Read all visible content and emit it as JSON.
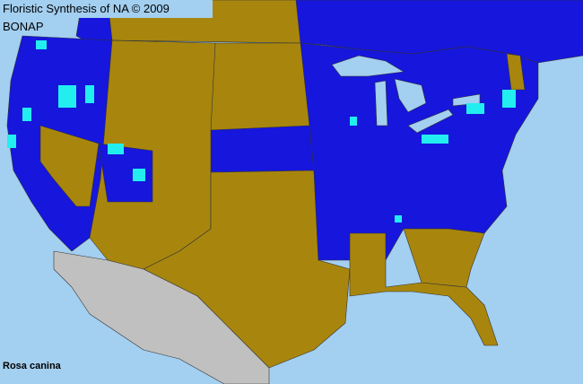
{
  "header": {
    "title": "Floristic Synthesis of NA © 2009 BONAP"
  },
  "map": {
    "species": "Rosa canina",
    "colors": {
      "ocean": "#a3cff0",
      "present_blue": "#1616dc",
      "present_cyan": "#22eef0",
      "absent_gold": "#a8860e",
      "outside_gray": "#c0c0c0"
    }
  }
}
